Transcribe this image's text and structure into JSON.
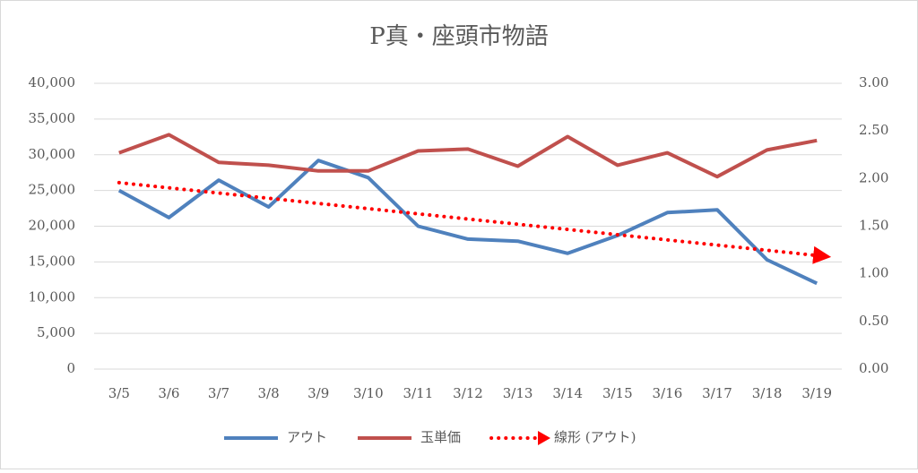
{
  "chart_data": {
    "type": "line",
    "title": "P真・座頭市物語",
    "categories": [
      "3/5",
      "3/6",
      "3/7",
      "3/8",
      "3/9",
      "3/10",
      "3/11",
      "3/12",
      "3/13",
      "3/14",
      "3/15",
      "3/16",
      "3/17",
      "3/18",
      "3/19"
    ],
    "series": [
      {
        "name": "アウト",
        "color": "#4f81bd",
        "values": [
          25000,
          21200,
          26450,
          22700,
          29200,
          26800,
          20000,
          18200,
          17900,
          16200,
          18700,
          21900,
          22300,
          15300,
          12000
        ]
      },
      {
        "name": "玉単価",
        "color": "#c0504d",
        "axis": "y2",
        "values": [
          2.27,
          2.46,
          2.17,
          2.14,
          2.08,
          2.08,
          2.29,
          2.31,
          2.13,
          2.44,
          2.14,
          2.27,
          2.02,
          2.3,
          2.4
        ]
      },
      {
        "name": "線形 (アウト)",
        "color": "#ff0000",
        "dotted": true,
        "arrow": true,
        "values": [
          26100,
          25371,
          24643,
          23914,
          23186,
          22457,
          21729,
          21000,
          20271,
          19543,
          18814,
          18086,
          17357,
          16629,
          15900
        ]
      }
    ],
    "ylim": [
      0,
      40000
    ],
    "yticks": [
      0,
      {
        "value": 5000,
        "label": "5,000"
      },
      {
        "value": 10000,
        "label": "10,000"
      },
      {
        "value": 15000,
        "label": "15,000"
      },
      {
        "value": 20000,
        "label": "20,000"
      },
      {
        "value": 25000,
        "label": "25,000"
      },
      {
        "value": 30000,
        "label": "30,000"
      },
      {
        "value": 35000,
        "label": "35,000"
      },
      {
        "value": 40000,
        "label": "40,000"
      }
    ],
    "y2lim": [
      0,
      3
    ],
    "y2ticks": [
      {
        "value": 0,
        "label": "0.00"
      },
      {
        "value": 0.5,
        "label": "0.50"
      },
      {
        "value": 1,
        "label": "1.00"
      },
      {
        "value": 1.5,
        "label": "1.50"
      },
      {
        "value": 2,
        "label": "2.00"
      },
      {
        "value": 2.5,
        "label": "2.50"
      },
      {
        "value": 3,
        "label": "3.00"
      }
    ],
    "grid": true,
    "legend": "bottom"
  }
}
